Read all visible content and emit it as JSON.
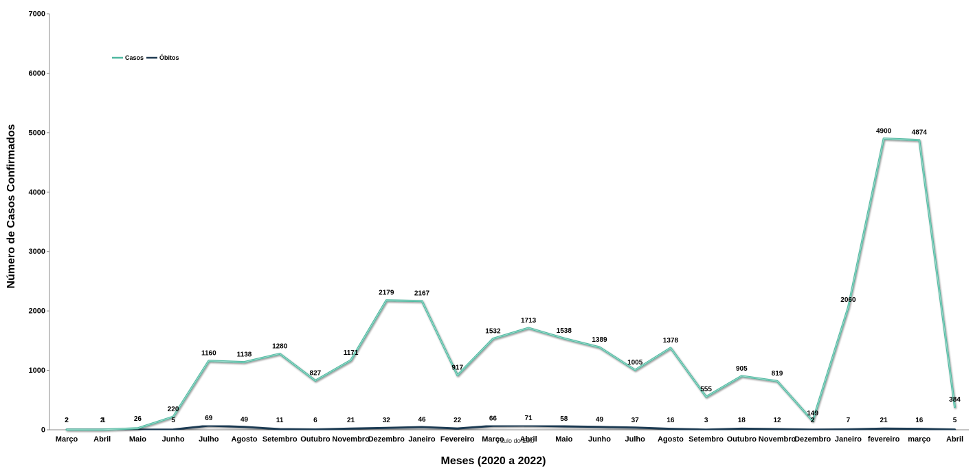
{
  "chart_data": {
    "type": "line",
    "title": "",
    "xlabel": "Meses (2020 a 2022)",
    "ylabel": "Número de Casos Confirmados",
    "ylim": [
      0,
      7000
    ],
    "yticks": [
      "0",
      "1000",
      "2000",
      "3000",
      "4000",
      "5000",
      "6000",
      "7000"
    ],
    "grid": false,
    "legend_position": "top-left",
    "categories": [
      "Março",
      "Abril",
      "Maio",
      "Junho",
      "Julho",
      "Agosto",
      "Setembro",
      "Outubro",
      "Novembro",
      "Dezembro",
      "Janeiro",
      "Fevereiro",
      "Março",
      "Abril",
      "Maio",
      "Junho",
      "Julho",
      "Agosto",
      "Setembro",
      "Outubro",
      "Novembro",
      "Dezembro",
      "Janeiro",
      "fevereiro",
      "março",
      "Abril"
    ],
    "series": [
      {
        "name": "Casos",
        "color": "#4fb8a0",
        "values": [
          2,
          1,
          26,
          220,
          1160,
          1138,
          1280,
          827,
          1171,
          2179,
          2167,
          917,
          1532,
          1713,
          1538,
          1389,
          1005,
          1378,
          555,
          905,
          819,
          149,
          2060,
          4900,
          4874,
          384
        ],
        "labels": [
          "2",
          "1",
          "26",
          "220",
          "1160",
          "1138",
          "1280",
          "827",
          "1171",
          "2179",
          "2167",
          "917",
          "1532",
          "1713",
          "1538",
          "1389",
          "1005",
          "1378",
          "555",
          "905",
          "819",
          "149",
          "2060",
          "4900",
          "4874",
          "384"
        ]
      },
      {
        "name": "Óbitos",
        "color": "#1f3a52",
        "values": [
          2,
          2,
          2,
          5,
          69,
          49,
          11,
          6,
          21,
          32,
          46,
          22,
          66,
          71,
          58,
          49,
          37,
          16,
          3,
          18,
          12,
          2,
          7,
          21,
          16,
          5
        ],
        "labels": [
          "2",
          "2",
          "",
          "5",
          "69",
          "49",
          "11",
          "6",
          "21",
          "32",
          "46",
          "22",
          "66",
          "71",
          "58",
          "49",
          "37",
          "16",
          "3",
          "18",
          "12",
          "2",
          "7",
          "21",
          "16",
          "5"
        ]
      }
    ],
    "annotation": "Título do Eixo"
  }
}
